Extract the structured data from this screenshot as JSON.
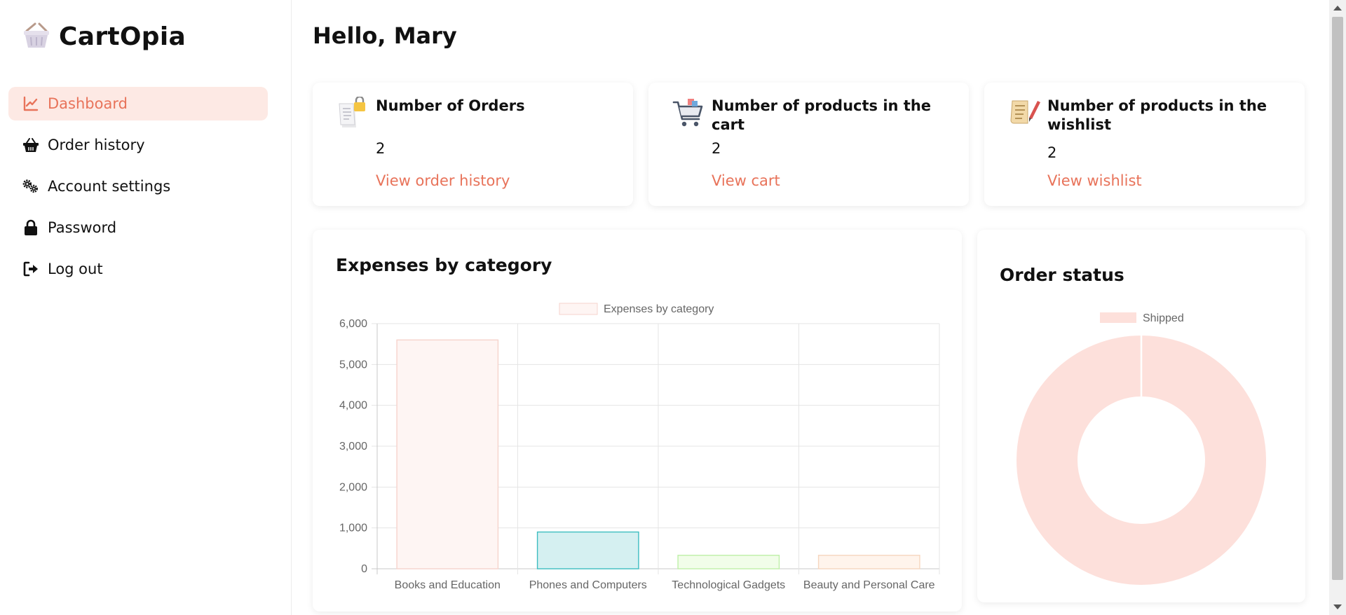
{
  "app": {
    "name": "CartOpia"
  },
  "sidebar": {
    "items": [
      {
        "label": "Dashboard",
        "icon": "chart-line-icon",
        "active": true
      },
      {
        "label": "Order history",
        "icon": "basket-icon"
      },
      {
        "label": "Account settings",
        "icon": "gears-icon"
      },
      {
        "label": "Password",
        "icon": "lock-icon"
      },
      {
        "label": "Log out",
        "icon": "logout-icon"
      }
    ]
  },
  "main": {
    "greeting": "Hello, Mary",
    "stats": [
      {
        "title": "Number of Orders",
        "value": "2",
        "link": "View order history",
        "icon": "receipt-lock-icon"
      },
      {
        "title": "Number of products in the cart",
        "value": "2",
        "link": "View cart",
        "icon": "shopping-cart-icon"
      },
      {
        "title": "Number of products in the wishlist",
        "value": "2",
        "link": "View wishlist",
        "icon": "wishlist-scroll-icon"
      }
    ]
  },
  "colors": {
    "accent": "#e8735a",
    "active_bg": "#fde9e4"
  },
  "chart_data": [
    {
      "type": "bar",
      "title": "Expenses by category",
      "legend": [
        "Expenses by category"
      ],
      "legend_position": "top",
      "categories": [
        "Books and Education",
        "Phones and Computers",
        "Technological Gadgets",
        "Beauty and Personal Care"
      ],
      "values": [
        5600,
        900,
        330,
        330
      ],
      "colors": [
        "#fef5f3",
        "#d5f0f1",
        "#f1fde9",
        "#fff4ec"
      ],
      "border_colors": [
        "#f6d3cc",
        "#3dbdc0",
        "#bff0a8",
        "#f6d6bf"
      ],
      "yticks": [
        "0",
        "1,000",
        "2,000",
        "3,000",
        "4,000",
        "5,000",
        "6,000"
      ],
      "ylim": [
        0,
        6000
      ],
      "grid": true
    },
    {
      "type": "pie",
      "title": "Order status",
      "legend": [
        "Shipped"
      ],
      "legend_position": "top",
      "labels": [
        "Shipped"
      ],
      "values": [
        2
      ],
      "colors": [
        "#fde0db"
      ]
    }
  ]
}
